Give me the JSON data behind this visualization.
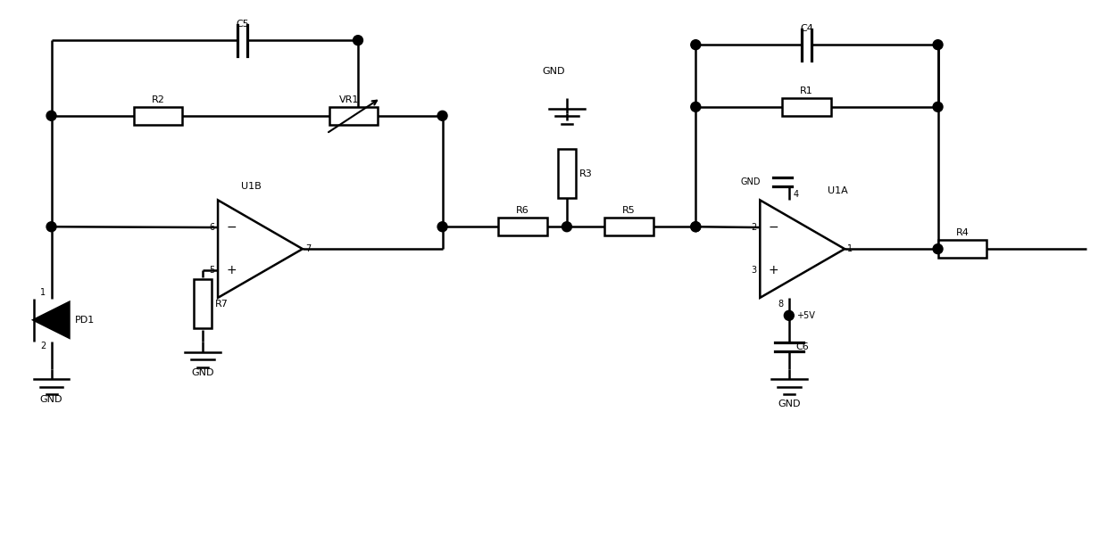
{
  "bg_color": "#ffffff",
  "line_color": "#000000",
  "lw": 1.8,
  "figsize": [
    12.4,
    6.19
  ],
  "dpi": 100,
  "xlim": [
    0,
    124
  ],
  "ylim": [
    0,
    61.9
  ]
}
